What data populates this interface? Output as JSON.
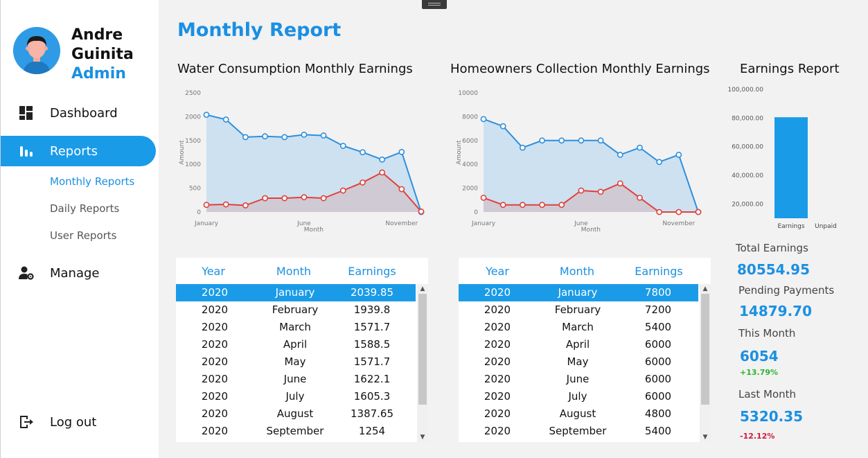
{
  "user": {
    "first_name": "Andre",
    "last_name": "Guinita",
    "role": "Admin"
  },
  "nav": {
    "dashboard": "Dashboard",
    "reports": "Reports",
    "sub": [
      "Monthly Reports",
      "Daily Reports",
      "User Reports"
    ],
    "manage": "Manage",
    "logout": "Log out"
  },
  "page_title": "Monthly Report",
  "charts": {
    "water": {
      "title": "Water Consumption Monthly Earnings"
    },
    "homeowners": {
      "title": "Homeowners Collection Monthly Earnings"
    },
    "earnings": {
      "title": "Earnings Report"
    }
  },
  "chart_data": [
    {
      "type": "area",
      "title": "Water Consumption Monthly Earnings",
      "xlabel": "Month",
      "ylabel": "Amount",
      "ylim": [
        0,
        2500
      ],
      "yticks": [
        0,
        500,
        1000,
        1500,
        2000,
        2500
      ],
      "xtick_labels": [
        "January",
        "June",
        "November"
      ],
      "series": [
        {
          "values": [
            2039.85,
            1939.8,
            1571.7,
            1588.5,
            1571.7,
            1622.1,
            1605.3,
            1387.65,
            1254,
            1100,
            1260,
            0
          ],
          "color": "#2d8fdc"
        },
        {
          "values": [
            150,
            160,
            140,
            290,
            290,
            310,
            290,
            450,
            620,
            830,
            480,
            10
          ],
          "color": "#e0413b"
        }
      ]
    },
    {
      "type": "area",
      "title": "Homeowners Collection Monthly Earnings",
      "xlabel": "Month",
      "ylabel": "Amount",
      "ylim": [
        0,
        10000
      ],
      "yticks": [
        0,
        2000,
        4000,
        6000,
        8000,
        10000
      ],
      "xtick_labels": [
        "January",
        "June",
        "November"
      ],
      "series": [
        {
          "values": [
            7800,
            7200,
            5400,
            6000,
            6000,
            6000,
            6000,
            4800,
            5400,
            4200,
            4800,
            0
          ],
          "color": "#2d8fdc"
        },
        {
          "values": [
            1200,
            600,
            600,
            600,
            600,
            1800,
            1700,
            2400,
            1200,
            0,
            0,
            0
          ],
          "color": "#e0413b"
        }
      ]
    },
    {
      "type": "bar",
      "title": "Earnings Report",
      "categories": [
        "Earnings",
        "Unpaid"
      ],
      "values": [
        80554.95,
        3000
      ],
      "colors": [
        "#1a9be8",
        "#e0413b"
      ],
      "ylim": [
        10000,
        100000
      ],
      "yticks": [
        "20,000.00",
        "40,000.00",
        "60,000.00",
        "80,000.00",
        "100,000.00"
      ]
    }
  ],
  "tables": {
    "headers": [
      "Year",
      "Month",
      "Earnings"
    ],
    "water_rows": [
      [
        "2020",
        "January",
        "2039.85"
      ],
      [
        "2020",
        "February",
        "1939.8"
      ],
      [
        "2020",
        "March",
        "1571.7"
      ],
      [
        "2020",
        "April",
        "1588.5"
      ],
      [
        "2020",
        "May",
        "1571.7"
      ],
      [
        "2020",
        "June",
        "1622.1"
      ],
      [
        "2020",
        "July",
        "1605.3"
      ],
      [
        "2020",
        "August",
        "1387.65"
      ],
      [
        "2020",
        "September",
        "1254"
      ]
    ],
    "homeowners_rows": [
      [
        "2020",
        "January",
        "7800"
      ],
      [
        "2020",
        "February",
        "7200"
      ],
      [
        "2020",
        "March",
        "5400"
      ],
      [
        "2020",
        "April",
        "6000"
      ],
      [
        "2020",
        "May",
        "6000"
      ],
      [
        "2020",
        "June",
        "6000"
      ],
      [
        "2020",
        "July",
        "6000"
      ],
      [
        "2020",
        "August",
        "4800"
      ],
      [
        "2020",
        "September",
        "5400"
      ]
    ]
  },
  "stats": {
    "total_earnings_label": "Total Earnings",
    "total_earnings": "80554.95",
    "pending_label": "Pending Payments",
    "pending": "14879.70",
    "this_month_label": "This Month",
    "this_month": "6054",
    "this_month_change": "+13.79%",
    "last_month_label": "Last Month",
    "last_month": "5320.35",
    "last_month_change": "-12.12%"
  },
  "colors": {
    "accent": "#1a9be8",
    "positive": "#2ab52a",
    "negative": "#d0193b"
  }
}
